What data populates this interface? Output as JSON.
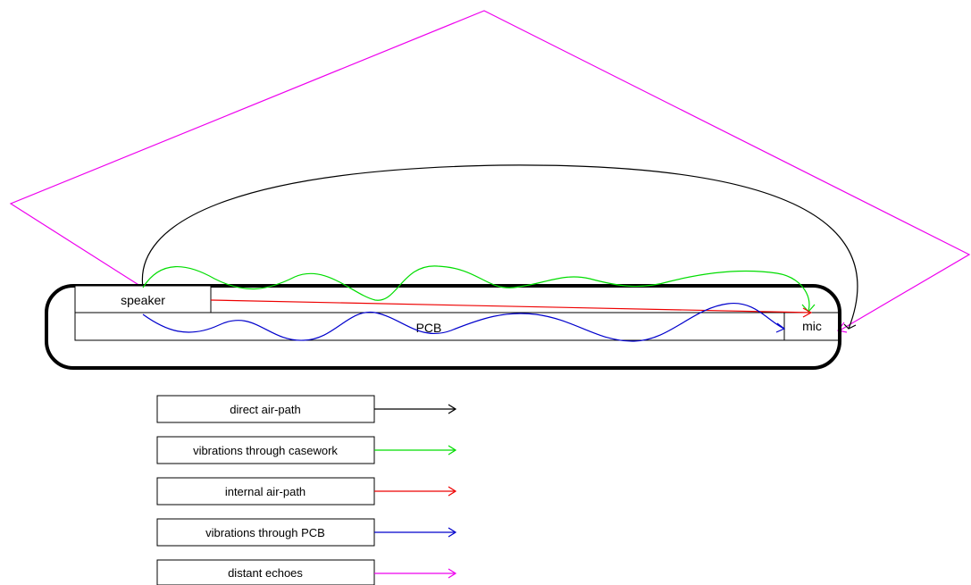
{
  "diagram": {
    "components": {
      "speaker": "speaker",
      "pcb": "PCB",
      "mic": "mic"
    },
    "legend": [
      {
        "label": "direct air-path",
        "color": "#000000"
      },
      {
        "label": "vibrations through casework",
        "color": "#00dd00"
      },
      {
        "label": "internal air-path",
        "color": "#ee0000"
      },
      {
        "label": "vibrations through PCB",
        "color": "#0000cc"
      },
      {
        "label": "distant echoes",
        "color": "#ee00ee"
      }
    ]
  }
}
